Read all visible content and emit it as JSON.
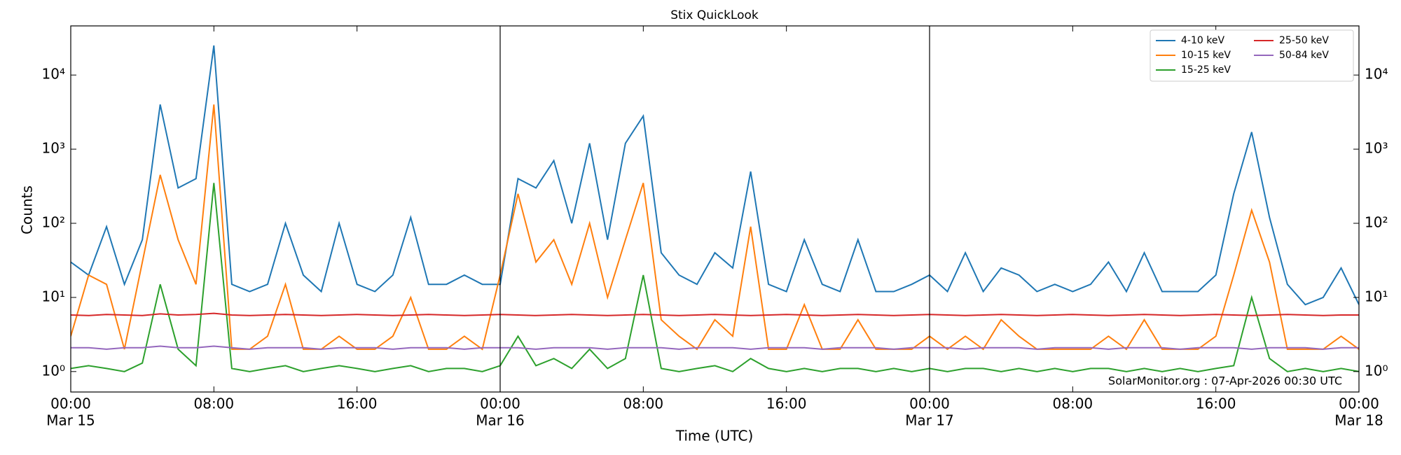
{
  "chart_data": {
    "type": "line",
    "title": "Stix QuickLook",
    "y_label": "Counts",
    "x_label": "Time (UTC)",
    "annotation": "SolarMonitor.org : 07-Apr-2026 00:30 UTC",
    "log_scale": true,
    "legend": "upper right",
    "day_lines": true,
    "x": [
      "Mar 15 00:00",
      "Mar 15 01:00",
      "Mar 15 02:00",
      "Mar 15 03:00",
      "Mar 15 04:00",
      "Mar 15 05:00",
      "Mar 15 06:00",
      "Mar 15 07:00",
      "Mar 15 08:00",
      "Mar 15 09:00",
      "Mar 15 10:00",
      "Mar 15 11:00",
      "Mar 15 12:00",
      "Mar 15 13:00",
      "Mar 15 14:00",
      "Mar 15 15:00",
      "Mar 15 16:00",
      "Mar 15 17:00",
      "Mar 15 18:00",
      "Mar 15 19:00",
      "Mar 15 20:00",
      "Mar 15 21:00",
      "Mar 15 22:00",
      "Mar 15 23:00",
      "Mar 16 00:00",
      "Mar 16 01:00",
      "Mar 16 02:00",
      "Mar 16 03:00",
      "Mar 16 04:00",
      "Mar 16 05:00",
      "Mar 16 06:00",
      "Mar 16 07:00",
      "Mar 16 08:00",
      "Mar 16 09:00",
      "Mar 16 10:00",
      "Mar 16 11:00",
      "Mar 16 12:00",
      "Mar 16 13:00",
      "Mar 16 14:00",
      "Mar 16 15:00",
      "Mar 16 16:00",
      "Mar 16 17:00",
      "Mar 16 18:00",
      "Mar 16 19:00",
      "Mar 16 20:00",
      "Mar 16 21:00",
      "Mar 16 22:00",
      "Mar 16 23:00",
      "Mar 17 00:00",
      "Mar 17 01:00",
      "Mar 17 02:00",
      "Mar 17 03:00",
      "Mar 17 04:00",
      "Mar 17 05:00",
      "Mar 17 06:00",
      "Mar 17 07:00",
      "Mar 17 08:00",
      "Mar 17 09:00",
      "Mar 17 10:00",
      "Mar 17 11:00",
      "Mar 17 12:00",
      "Mar 17 13:00",
      "Mar 17 14:00",
      "Mar 17 15:00",
      "Mar 17 16:00",
      "Mar 17 17:00",
      "Mar 17 18:00",
      "Mar 17 19:00",
      "Mar 17 20:00",
      "Mar 17 21:00",
      "Mar 17 22:00",
      "Mar 17 23:00",
      "Mar 18 00:00"
    ],
    "series": [
      {
        "name": "4-10 keV",
        "color": "#1f77b4",
        "values": [
          30,
          20,
          90,
          15,
          60,
          4000,
          300,
          400,
          25000,
          15,
          12,
          15,
          100,
          20,
          12,
          100,
          15,
          12,
          20,
          120,
          15,
          15,
          20,
          15,
          15,
          400,
          300,
          700,
          100,
          1200,
          60,
          1200,
          2800,
          40,
          20,
          15,
          40,
          25,
          500,
          15,
          12,
          60,
          15,
          12,
          60,
          12,
          12,
          15,
          20,
          12,
          40,
          12,
          25,
          20,
          12,
          15,
          12,
          15,
          30,
          12,
          40,
          12,
          12,
          12,
          20,
          250,
          1700,
          120,
          15,
          8,
          10,
          25,
          8
        ]
      },
      {
        "name": "10-15 keV",
        "color": "#ff7f0e",
        "values": [
          3,
          20,
          15,
          2,
          30,
          450,
          60,
          15,
          4000,
          2,
          2,
          3,
          15,
          2,
          2,
          3,
          2,
          2,
          3,
          10,
          2,
          2,
          3,
          2,
          20,
          250,
          30,
          60,
          15,
          100,
          10,
          60,
          350,
          5,
          3,
          2,
          5,
          3,
          90,
          2,
          2,
          8,
          2,
          2,
          5,
          2,
          2,
          2,
          3,
          2,
          3,
          2,
          5,
          3,
          2,
          2,
          2,
          2,
          3,
          2,
          5,
          2,
          2,
          2,
          3,
          20,
          150,
          30,
          2,
          2,
          2,
          3,
          2
        ]
      },
      {
        "name": "15-25 keV",
        "color": "#2ca02c",
        "values": [
          1.1,
          1.2,
          1.1,
          1.0,
          1.3,
          15,
          2,
          1.2,
          350,
          1.1,
          1.0,
          1.1,
          1.2,
          1.0,
          1.1,
          1.2,
          1.1,
          1.0,
          1.1,
          1.2,
          1.0,
          1.1,
          1.1,
          1.0,
          1.2,
          3,
          1.2,
          1.5,
          1.1,
          2,
          1.1,
          1.5,
          20,
          1.1,
          1.0,
          1.1,
          1.2,
          1.0,
          1.5,
          1.1,
          1.0,
          1.1,
          1.0,
          1.1,
          1.1,
          1.0,
          1.1,
          1.0,
          1.1,
          1.0,
          1.1,
          1.1,
          1.0,
          1.1,
          1.0,
          1.1,
          1.0,
          1.1,
          1.1,
          1.0,
          1.1,
          1.0,
          1.1,
          1.0,
          1.1,
          1.2,
          10,
          1.5,
          1.0,
          1.1,
          1.0,
          1.1,
          1.0
        ]
      },
      {
        "name": "25-50 keV",
        "color": "#d62728",
        "values": [
          5.8,
          5.7,
          5.9,
          5.8,
          5.7,
          6.0,
          5.8,
          5.9,
          6.1,
          5.8,
          5.7,
          5.8,
          5.9,
          5.8,
          5.7,
          5.8,
          5.9,
          5.8,
          5.7,
          5.8,
          5.9,
          5.8,
          5.7,
          5.8,
          5.9,
          5.8,
          5.7,
          5.8,
          5.9,
          5.8,
          5.7,
          5.8,
          5.9,
          5.8,
          5.7,
          5.8,
          5.9,
          5.8,
          5.7,
          5.8,
          5.9,
          5.8,
          5.7,
          5.8,
          5.9,
          5.8,
          5.7,
          5.8,
          5.9,
          5.8,
          5.7,
          5.8,
          5.9,
          5.8,
          5.7,
          5.8,
          5.9,
          5.8,
          5.7,
          5.8,
          5.9,
          5.8,
          5.7,
          5.8,
          5.9,
          5.8,
          5.7,
          5.8,
          5.9,
          5.8,
          5.7,
          5.8,
          5.8
        ]
      },
      {
        "name": "50-84 keV",
        "color": "#9467bd",
        "values": [
          2.1,
          2.1,
          2.0,
          2.1,
          2.1,
          2.2,
          2.1,
          2.1,
          2.2,
          2.1,
          2.0,
          2.1,
          2.1,
          2.1,
          2.0,
          2.1,
          2.1,
          2.1,
          2.0,
          2.1,
          2.1,
          2.1,
          2.0,
          2.1,
          2.1,
          2.1,
          2.0,
          2.1,
          2.1,
          2.1,
          2.0,
          2.1,
          2.1,
          2.1,
          2.0,
          2.1,
          2.1,
          2.1,
          2.0,
          2.1,
          2.1,
          2.1,
          2.0,
          2.1,
          2.1,
          2.1,
          2.0,
          2.1,
          2.1,
          2.1,
          2.0,
          2.1,
          2.1,
          2.1,
          2.0,
          2.1,
          2.1,
          2.1,
          2.0,
          2.1,
          2.1,
          2.1,
          2.0,
          2.1,
          2.1,
          2.1,
          2.0,
          2.1,
          2.1,
          2.1,
          2.0,
          2.1,
          2.1
        ]
      }
    ],
    "xlim": [
      "Mar 15 00:00",
      "Mar 18 00:00"
    ],
    "xticks": [
      {
        "value": "Mar 15 00:00",
        "label": [
          "00:00",
          "Mar 15"
        ]
      },
      {
        "value": "Mar 15 08:00",
        "label": [
          "08:00"
        ]
      },
      {
        "value": "Mar 15 16:00",
        "label": [
          "16:00"
        ]
      },
      {
        "value": "Mar 16 00:00",
        "label": [
          "00:00",
          "Mar 16"
        ]
      },
      {
        "value": "Mar 16 08:00",
        "label": [
          "08:00"
        ]
      },
      {
        "value": "Mar 16 16:00",
        "label": [
          "16:00"
        ]
      },
      {
        "value": "Mar 17 00:00",
        "label": [
          "00:00",
          "Mar 17"
        ]
      },
      {
        "value": "Mar 17 08:00",
        "label": [
          "08:00"
        ]
      },
      {
        "value": "Mar 17 16:00",
        "label": [
          "16:00"
        ]
      },
      {
        "value": "Mar 18 00:00",
        "label": [
          "00:00",
          "Mar 18"
        ]
      }
    ],
    "ylim": [
      0.53,
      46000
    ],
    "yticks": [
      {
        "value": 1,
        "label": "10⁰"
      },
      {
        "value": 10,
        "label": "10¹"
      },
      {
        "value": 100,
        "label": "10²"
      },
      {
        "value": 1000,
        "label": "10³"
      },
      {
        "value": 10000,
        "label": "10⁴"
      }
    ]
  }
}
